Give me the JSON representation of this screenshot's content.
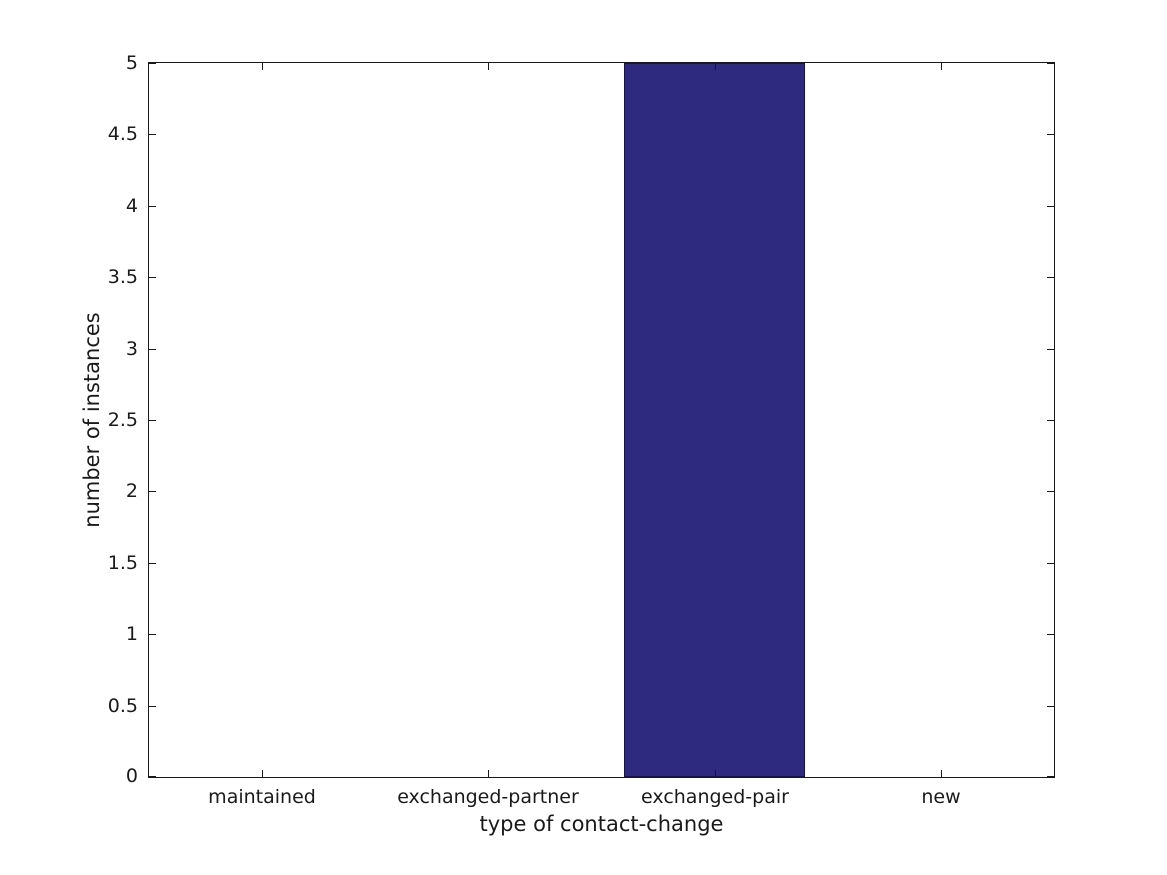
{
  "chart_data": {
    "type": "bar",
    "title": "",
    "xlabel": "type of contact-change",
    "ylabel": "number of instances",
    "categories": [
      "maintained",
      "exchanged-partner",
      "exchanged-pair",
      "new"
    ],
    "values": [
      0,
      0,
      5,
      0
    ],
    "ylim": [
      0,
      5
    ],
    "yticks": [
      0,
      0.5,
      1,
      1.5,
      2,
      2.5,
      3,
      3.5,
      4,
      4.5,
      5
    ],
    "ytick_labels": [
      "0",
      "0.5",
      "1",
      "1.5",
      "2",
      "2.5",
      "3",
      "3.5",
      "4",
      "4.5",
      "5"
    ],
    "bar_width_fraction": 0.8,
    "grid": false,
    "legend": null,
    "colors": {
      "bar_fill": "#2e2a80",
      "bar_edge": "#16134a",
      "axis": "#1a1a1a",
      "text": "#1a1a1a",
      "background": "#ffffff"
    }
  }
}
